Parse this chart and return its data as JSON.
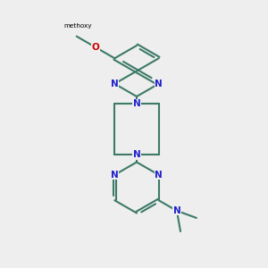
{
  "bg_color": "#eeeeee",
  "bond_color": "#3d7a68",
  "n_color": "#2020cc",
  "o_color": "#cc0000",
  "line_width": 1.5,
  "dbo": 0.055,
  "fs": 7.5,
  "figsize": [
    3.0,
    3.0
  ],
  "dpi": 100,
  "xlim": [
    0,
    10
  ],
  "ylim": [
    0,
    10
  ],
  "methoxy_label": "methoxy"
}
